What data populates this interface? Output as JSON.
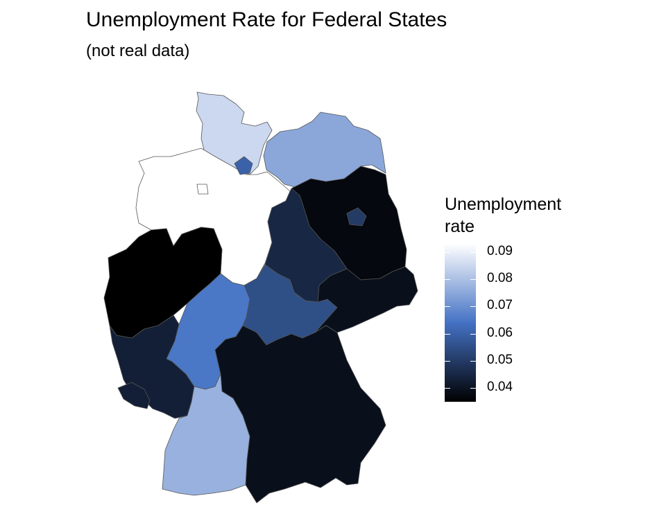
{
  "title": "Unemployment Rate for Federal States",
  "subtitle": "(not real data)",
  "legend": {
    "title_line1": "Unemployment",
    "title_line2": "rate",
    "min": 0.035,
    "max": 0.093,
    "ticks": [
      "0.09",
      "0.08",
      "0.07",
      "0.06",
      "0.05",
      "0.04"
    ],
    "tick_values": [
      0.09,
      0.08,
      0.07,
      0.06,
      0.05,
      0.04
    ],
    "colors": {
      "low": "#000000",
      "mid": "#4472c4",
      "high": "#ffffff"
    }
  },
  "chart_data": {
    "type": "choropleth",
    "title": "Unemployment Rate for Federal States",
    "subtitle": "(not real data)",
    "legend_title": "Unemployment rate",
    "legend_position": "right",
    "states": [
      {
        "id": "schleswig-holstein",
        "value": 0.085
      },
      {
        "id": "hamburg",
        "value": 0.06
      },
      {
        "id": "mecklenburg-vorpommern",
        "value": 0.075
      },
      {
        "id": "niedersachsen",
        "value": 0.093
      },
      {
        "id": "bremen",
        "value": 0.093
      },
      {
        "id": "brandenburg",
        "value": 0.037
      },
      {
        "id": "berlin",
        "value": 0.05
      },
      {
        "id": "sachsen-anhalt",
        "value": 0.045
      },
      {
        "id": "nordrhein-westfalen",
        "value": 0.035
      },
      {
        "id": "hessen",
        "value": 0.065
      },
      {
        "id": "thueringen",
        "value": 0.055
      },
      {
        "id": "sachsen",
        "value": 0.039
      },
      {
        "id": "rheinland-pfalz",
        "value": 0.043
      },
      {
        "id": "saarland",
        "value": 0.043
      },
      {
        "id": "bayern",
        "value": 0.039
      },
      {
        "id": "baden-wuerttemberg",
        "value": 0.077
      }
    ]
  }
}
